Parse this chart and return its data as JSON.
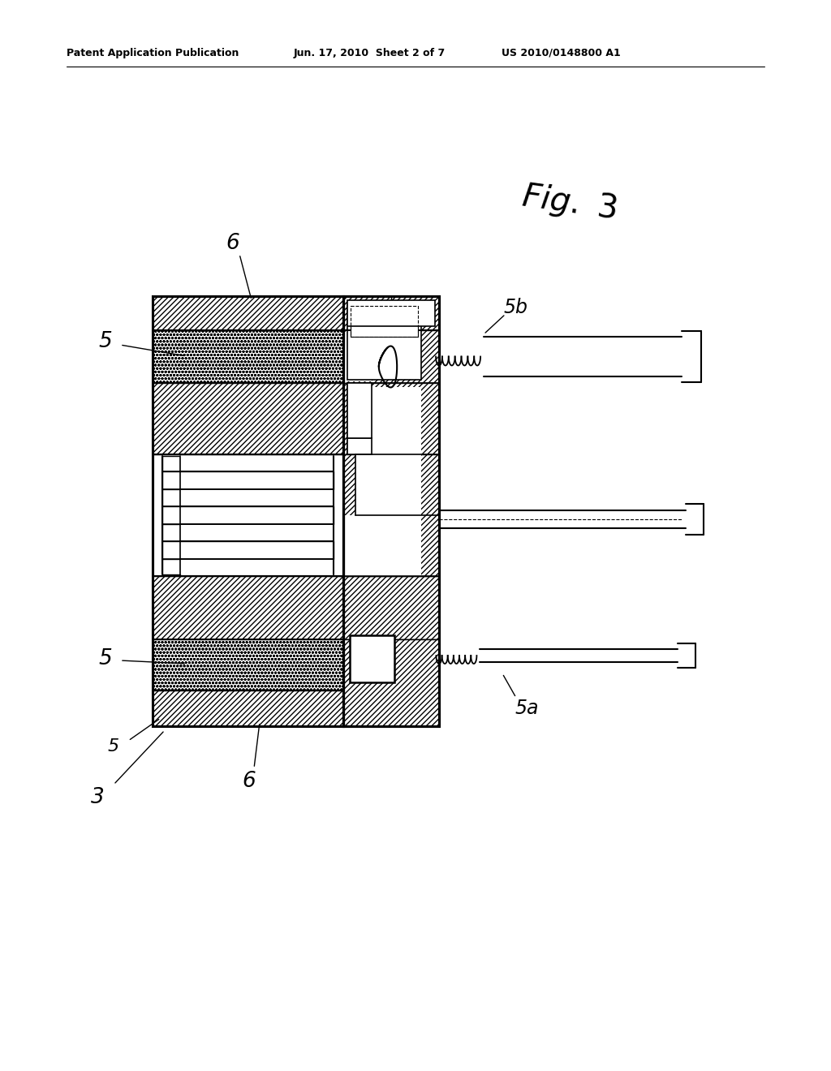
{
  "header_left": "Patent Application Publication",
  "header_mid": "Jun. 17, 2010  Sheet 2 of 7",
  "header_right": "US 2010/0148800 A1",
  "bg": "#ffffff"
}
